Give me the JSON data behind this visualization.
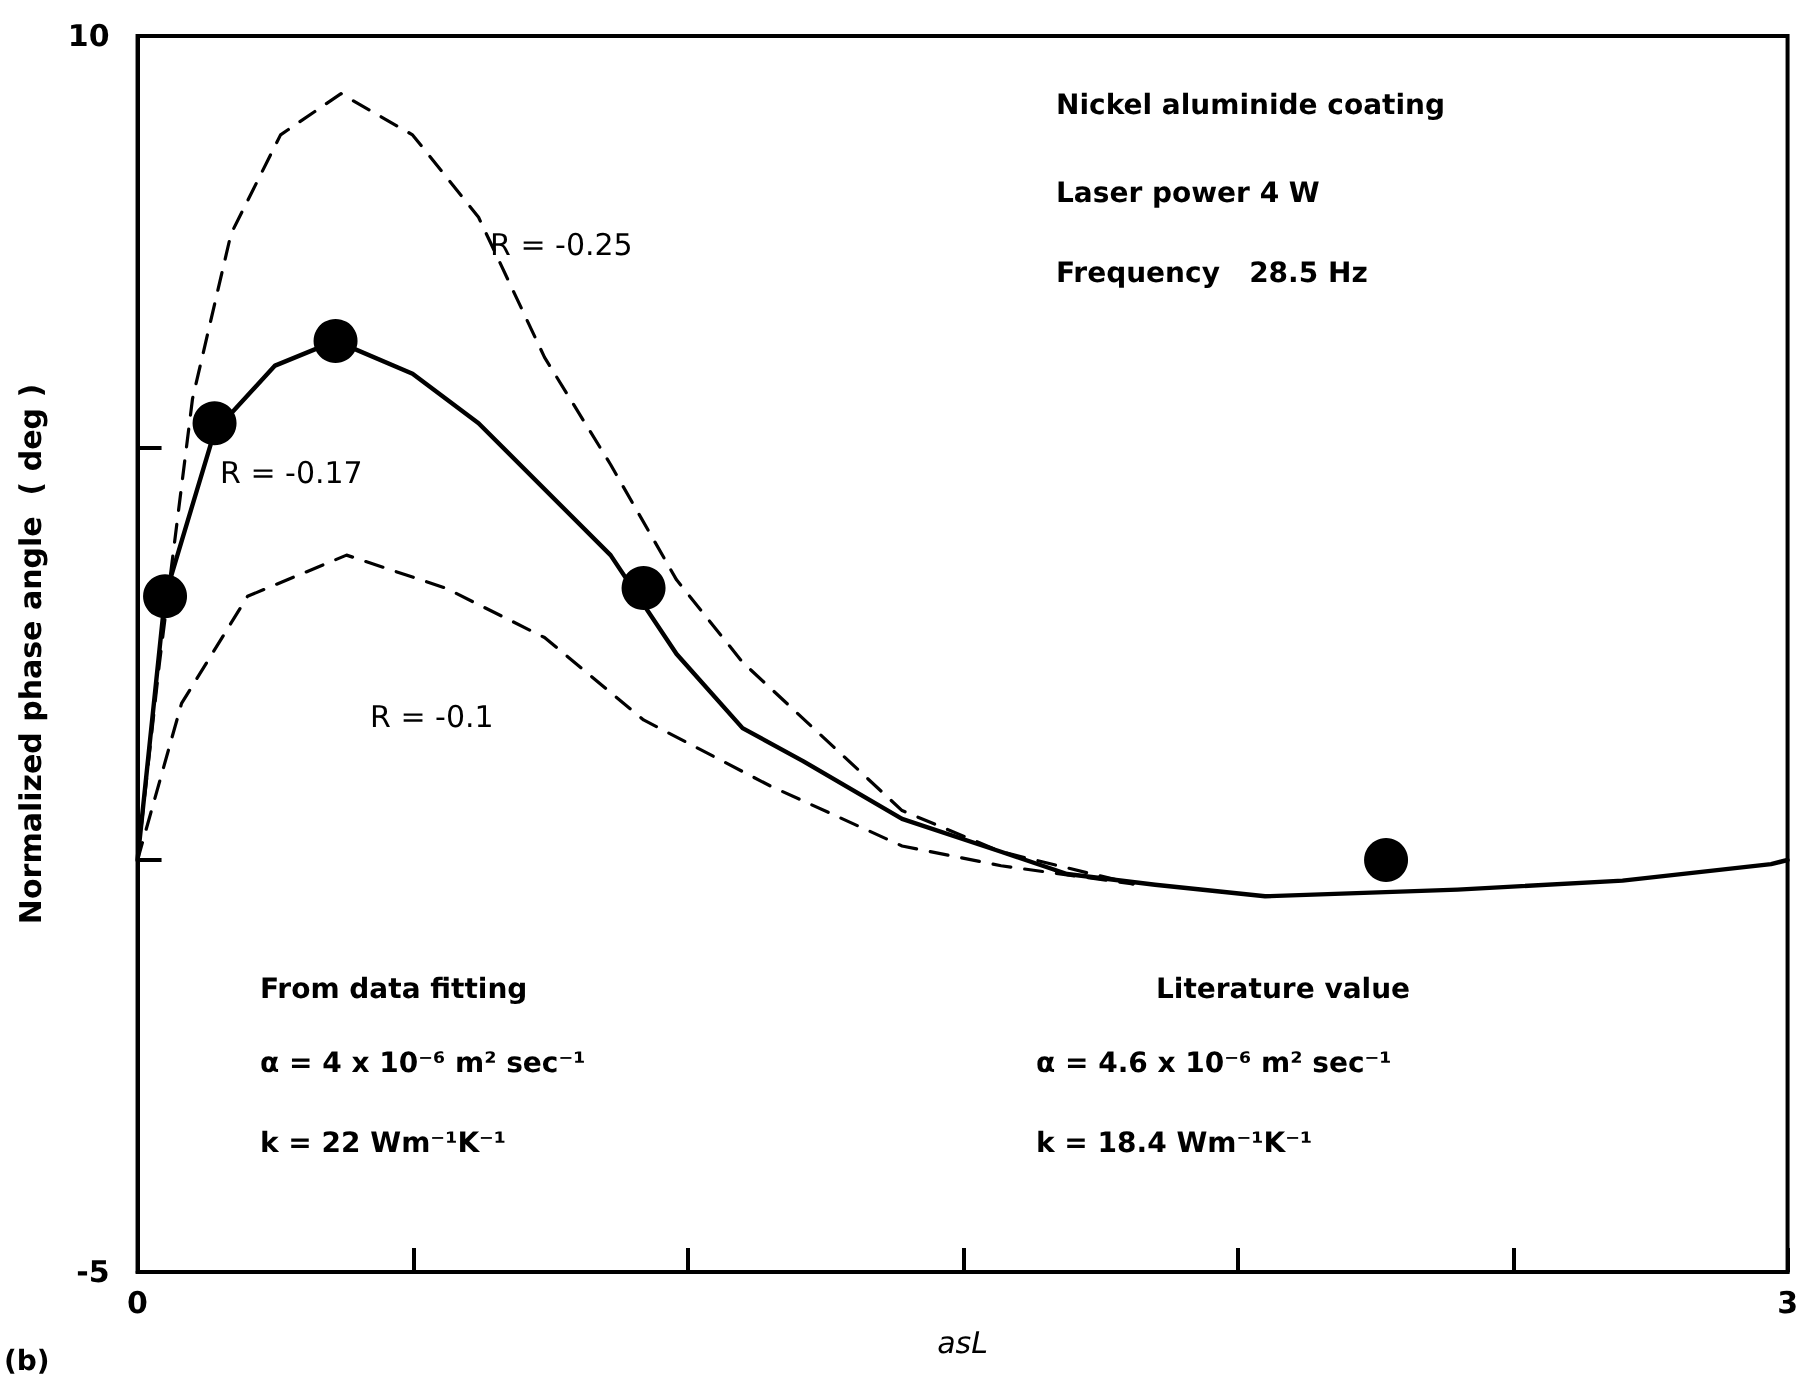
{
  "chart_data": {
    "type": "line",
    "xlabel": "asL",
    "ylabel": "Normalized phase angle  ( deg )",
    "xlim": [
      0,
      3
    ],
    "xticks": [
      0,
      {
        "value": 0.5,
        "label": null
      },
      {
        "value": 1,
        "label": null
      },
      {
        "value": 1.5,
        "label": null
      },
      {
        "value": 2,
        "label": null
      },
      {
        "value": 2.5,
        "label": null
      },
      3
    ],
    "ylim": [
      -5,
      10
    ],
    "yticks": [
      -5,
      {
        "value": 0,
        "label": null
      },
      {
        "value": 5,
        "label": null
      },
      10
    ],
    "grid": false,
    "series": [
      {
        "type": "scatter",
        "color": "#000000",
        "marker": "circle",
        "x": [
          0.05,
          0.14,
          0.36,
          0.92,
          2.27
        ],
        "values": [
          3.2,
          5.3,
          6.3,
          3.3,
          0.0
        ]
      },
      {
        "type": "line",
        "color": "#000000",
        "marker": "none",
        "line_style": "solid",
        "x": [
          0,
          0.05,
          0.14,
          0.25,
          0.36,
          0.5,
          0.62,
          0.86,
          0.98,
          1.1,
          1.21,
          1.39,
          1.57,
          1.69,
          1.85,
          2.05,
          2.4,
          2.7,
          2.97,
          3.0
        ],
        "values": [
          0,
          3.2,
          5.2,
          6.0,
          6.3,
          5.9,
          5.3,
          3.7,
          2.5,
          1.6,
          1.2,
          0.5,
          0.1,
          -0.17,
          -0.3,
          -0.44,
          -0.36,
          -0.25,
          -0.05,
          0.0
        ]
      },
      {
        "type": "line",
        "color": "#000000",
        "marker": "none",
        "line_style": "dashed",
        "x": [
          0,
          0.04,
          0.1,
          0.17,
          0.26,
          0.37,
          0.5,
          0.62,
          0.74,
          0.86,
          0.98,
          1.1,
          1.39,
          1.57,
          1.81
        ],
        "values": [
          0,
          2.4,
          5.6,
          7.6,
          8.8,
          9.3,
          8.8,
          7.8,
          6.1,
          4.8,
          3.4,
          2.4,
          0.6,
          0.1,
          -0.29
        ]
      },
      {
        "type": "line",
        "color": "#000000",
        "marker": "none",
        "line_style": "dashed",
        "x": [
          0,
          0.08,
          0.2,
          0.38,
          0.56,
          0.74,
          0.92,
          1.15,
          1.39,
          1.57,
          1.81
        ],
        "values": [
          0,
          1.9,
          3.2,
          3.7,
          3.3,
          2.7,
          1.7,
          0.9,
          0.17,
          -0.07,
          -0.29
        ]
      }
    ],
    "annotations": [
      "R = -0.25",
      "R = -0.17",
      "R = -0.1",
      "Nickel aluminide coating",
      "Laser power 4 W",
      "Frequency   28.5 Hz",
      "From data fitting",
      "α = 4 x 10⁻⁶ m² sec⁻¹",
      "k = 22 Wm⁻¹K⁻¹",
      "Literature value",
      "α = 4.6 x 10⁻⁶ m² sec⁻¹",
      "k = 18.4 Wm⁻¹K⁻¹",
      "(b)"
    ]
  }
}
